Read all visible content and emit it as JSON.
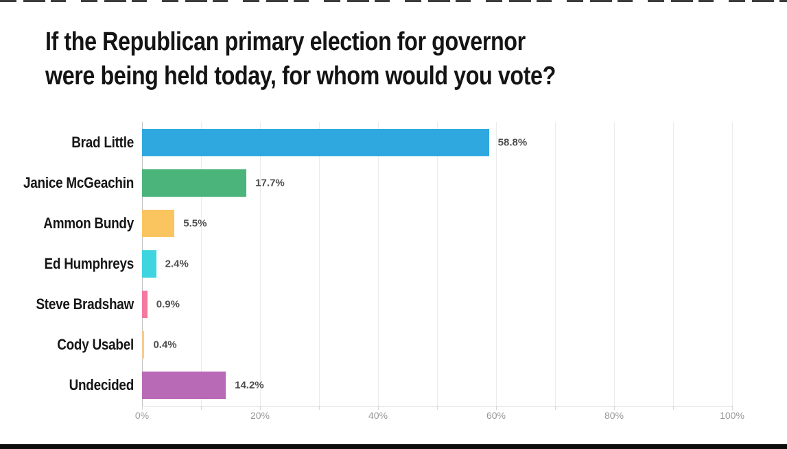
{
  "page": {
    "background": "#ffffff",
    "bottom_bar_color": "#0c0c0c"
  },
  "chart_data": {
    "type": "bar",
    "orientation": "horizontal",
    "title": "If the Republican primary election for governor were being held today, for whom would you vote?",
    "title_lines": [
      "If the Republican primary election for governor",
      "were being held today, for whom would you vote?"
    ],
    "categories": [
      "Brad Little",
      "Janice McGeachin",
      "Ammon Bundy",
      "Ed Humphreys",
      "Steve Bradshaw",
      "Cody Usabel",
      "Undecided"
    ],
    "values": [
      58.8,
      17.7,
      5.5,
      2.4,
      0.9,
      0.4,
      14.2
    ],
    "value_labels": [
      "58.8%",
      "17.7%",
      "5.5%",
      "2.4%",
      "0.9%",
      "0.4%",
      "14.2%"
    ],
    "bar_colors": [
      "#2fa8df",
      "#4bb47b",
      "#fac55e",
      "#3fd5e0",
      "#f4799f",
      "#f7cb90",
      "#b96ab6"
    ],
    "x_ticks": [
      "0%",
      "20%",
      "40%",
      "60%",
      "80%",
      "100%"
    ],
    "x_tick_percents": [
      0,
      20,
      40,
      60,
      80,
      100
    ],
    "xlim": [
      0,
      100
    ],
    "gridlines_every_percent": 10,
    "legend": "none",
    "grid": "vertical-only",
    "text_colors": {
      "title": "#141414",
      "category": "#161616",
      "value": "#4e4e4e",
      "tick": "#979797"
    }
  }
}
